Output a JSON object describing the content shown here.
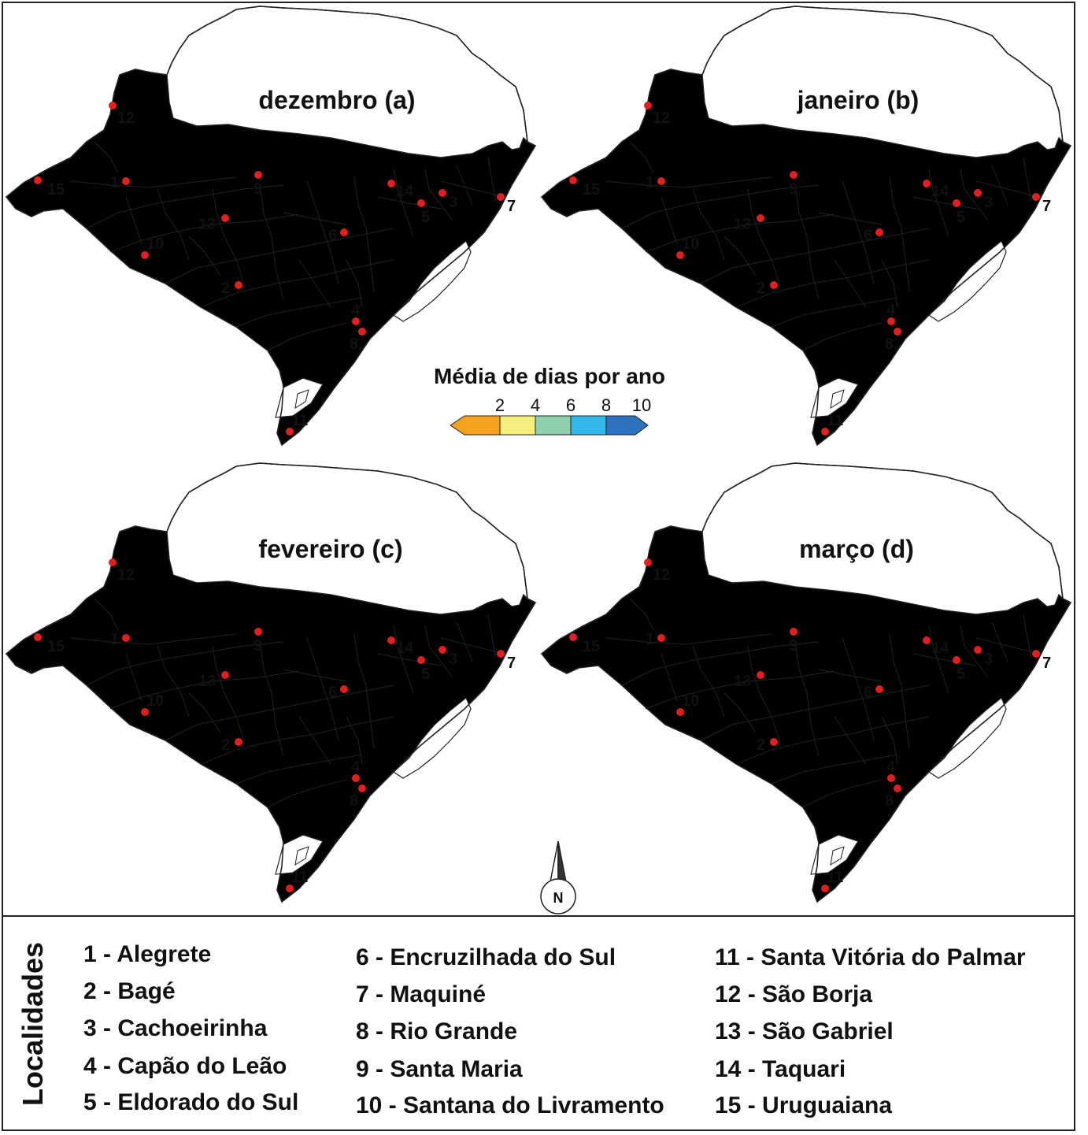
{
  "legend": {
    "title": "Média de dias por ano",
    "ticks": [
      "2",
      "4",
      "6",
      "8",
      "10"
    ],
    "colors": [
      "#f5a21e",
      "#f4ee7e",
      "#8fcfae",
      "#33b7ea",
      "#2e73bd"
    ]
  },
  "panels": [
    {
      "title": "dezembro (a)",
      "fills": [
        "#f4ee7e",
        "#8fcfae",
        "#33b7ea",
        "#2e73bd"
      ]
    },
    {
      "title": "janeiro (b)",
      "fills": [
        "#f5a21e",
        "#f4ee7e",
        "#8fcfae",
        "#33b7ea"
      ]
    },
    {
      "title": "fevereiro (c)",
      "fills": [
        "#f5a21e",
        "#f4ee7e",
        "#8fcfae",
        "#33b7ea"
      ]
    },
    {
      "title": "março (d)",
      "fills": [
        "#8fcfae",
        "#33b7ea",
        "#2e73bd",
        "#2e73bd"
      ]
    }
  ],
  "markers": [
    "1",
    "2",
    "3",
    "4",
    "5",
    "6",
    "7",
    "8",
    "9",
    "10",
    "11",
    "12",
    "13",
    "14",
    "15"
  ],
  "compass": {
    "label": "N"
  },
  "locations": {
    "label": "Localidades",
    "items": [
      "1 - Alegrete",
      "2 - Bagé",
      "3 - Cachoeirinha",
      "4 - Capão do Leão",
      "5 - Eldorado do Sul",
      "6 - Encruzilhada do Sul",
      "7 - Maquiné",
      "8 - Rio Grande",
      "9 - Santa Maria",
      "10 - Santana do Livramento",
      "11 - Santa Vitória do Palmar",
      "12 - São Borja",
      "13 - São Gabriel",
      "14 - Taquari",
      "15 - Uruguaiana"
    ]
  },
  "colors": {
    "marker": "#e02020",
    "outline": "#111111",
    "water": "#ffffff"
  }
}
